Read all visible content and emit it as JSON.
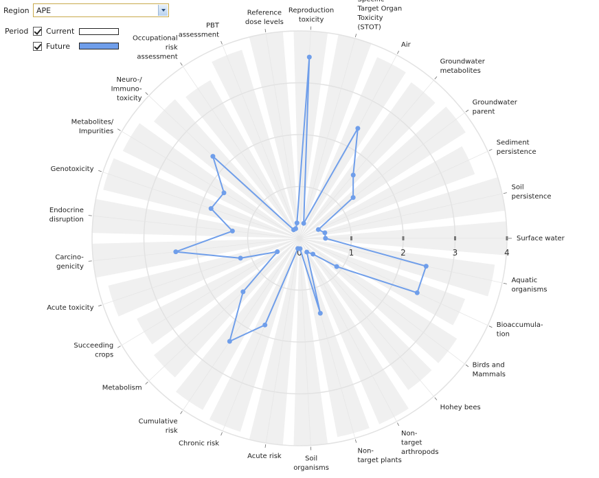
{
  "controls": {
    "region_label": "Region",
    "region_value": "APE",
    "period_label": "Period",
    "period_current": "Current",
    "period_future": "Future"
  },
  "colors": {
    "current": "#ffffff",
    "future": "#6f9eea",
    "sector_fill": "#f0f0f0",
    "grid_ring": "#e2e2e2"
  },
  "chart_data": {
    "type": "radar",
    "r_ticks": [
      "0",
      "1",
      "2",
      "3",
      "4"
    ],
    "rlim": [
      0,
      4
    ],
    "categories": [
      "Surface water",
      "Aquatic organisms",
      "Bioaccumula-tion",
      "Birds and Mammals",
      "Hohey bees",
      "Non-target arthropods",
      "Non-target plants",
      "Soil organisms",
      "Acute risk",
      "Chronic risk",
      "Cumulative risk",
      "Metabolism",
      "Succeeding crops",
      "Acute toxicity",
      "Carcino-genicity",
      "Endocrine disruption",
      "Genotoxicity",
      "Metabolites/ Impurities",
      "Neuro-/ Immuno-toxicity",
      "Occupational risk assessment",
      "PBT assessment",
      "Reference dose levels",
      "Reproduction toxicity",
      "Specific Target Organ Toxicity (STOT)",
      "Air",
      "Groundwater metabolites",
      "Groundwater parent",
      "Sediment persistence",
      "Soil persistence"
    ],
    "label_lines": [
      [
        "Surface water"
      ],
      [
        "Aquatic",
        "organisms"
      ],
      [
        "Bioaccumula-",
        "tion"
      ],
      [
        "Birds and",
        "Mammals"
      ],
      [
        "Hohey bees"
      ],
      [
        "Non-",
        "target",
        "arthropods"
      ],
      [
        "Non-",
        "target plants"
      ],
      [
        "Soil",
        "organisms"
      ],
      [
        "Acute risk"
      ],
      [
        "Chronic risk"
      ],
      [
        "Cumulative",
        "risk"
      ],
      [
        "Metabolism"
      ],
      [
        "Succeeding",
        "crops"
      ],
      [
        "Acute toxicity"
      ],
      [
        "Carcino-",
        "genicity"
      ],
      [
        "Endocrine",
        "disruption"
      ],
      [
        "Genotoxicity"
      ],
      [
        "Metabolites/",
        "Impurities"
      ],
      [
        "Neuro-/",
        "Immuno-",
        "toxicity"
      ],
      [
        "Occupational",
        "risk",
        "assessment"
      ],
      [
        "PBT",
        "assessment"
      ],
      [
        "Reference",
        "dose levels"
      ],
      [
        "Reproduction",
        "toxicity"
      ],
      [
        "Specific",
        "Target Organ",
        "Toxicity",
        "(STOT)"
      ],
      [
        "Air"
      ],
      [
        "Groundwater",
        "metabolites"
      ],
      [
        "Groundwater",
        "parent"
      ],
      [
        "Sediment",
        "persistence"
      ],
      [
        "Soil",
        "persistence"
      ]
    ],
    "sector_extent": [
      4.0,
      3.8,
      3.4,
      3.6,
      3.6,
      3.9,
      3.9,
      4.0,
      4.0,
      3.9,
      3.8,
      3.6,
      3.5,
      3.8,
      4.0,
      4.0,
      3.9,
      3.8,
      3.6,
      3.5,
      3.8,
      4.0,
      4.0,
      4.0,
      3.8,
      3.7,
      3.8,
      3.6,
      4.0
    ],
    "series": [
      {
        "name": "Future",
        "values": [
          0.5,
          2.5,
          2.5,
          0.9,
          0.4,
          0.3,
          1.5,
          0.2,
          0.2,
          1.8,
          2.4,
          1.5,
          0.5,
          1.2,
          2.4,
          1.3,
          1.8,
          1.7,
          2.3,
          0.2,
          0.2,
          0.3,
          3.5,
          0.3,
          2.4,
          1.6,
          1.3,
          0.4,
          0.5
        ]
      }
    ]
  }
}
